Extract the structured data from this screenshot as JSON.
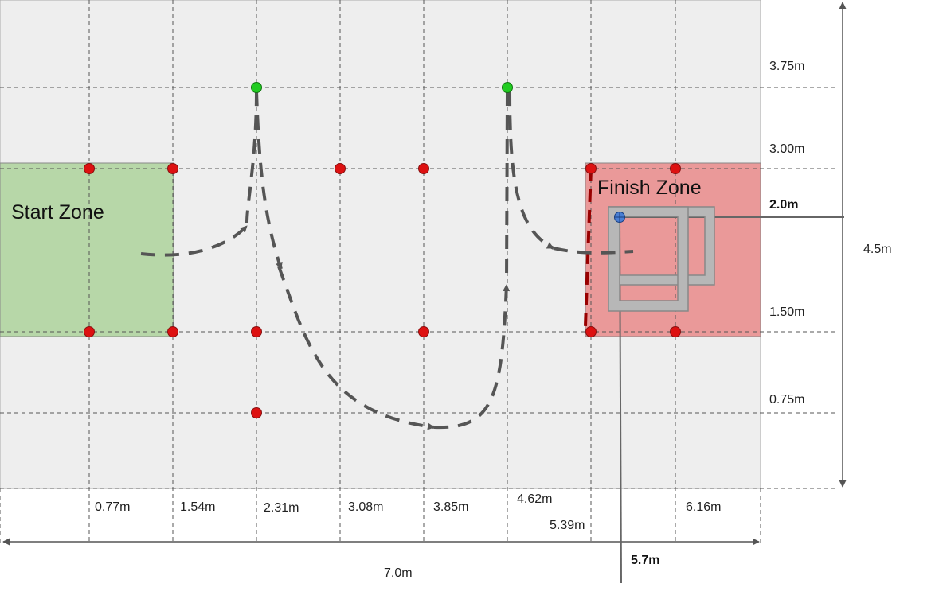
{
  "zones": {
    "start": {
      "label": "Start Zone",
      "color": "#b7d7a8"
    },
    "finish": {
      "label": "Finish Zone",
      "color": "#ea9999"
    }
  },
  "x_labels": [
    "0.77m",
    "1.54m",
    "2.31m",
    "3.08m",
    "3.85m",
    "4.62m",
    "5.39m",
    "6.16m"
  ],
  "y_labels": [
    "3.75m",
    "3.00m",
    "1.50m",
    "0.75m"
  ],
  "dimensions": {
    "total_width": "7.0m",
    "total_height": "4.5m",
    "target_x": "5.7m",
    "target_y": "2.0m"
  },
  "colors": {
    "field": "#eeeeee",
    "red_marker": "#dd1111",
    "green_marker": "#22cc22",
    "target_marker": "#4a7fd4",
    "path": "#555555",
    "finish_line": "#990000",
    "frame": "#b7b7b7"
  }
}
